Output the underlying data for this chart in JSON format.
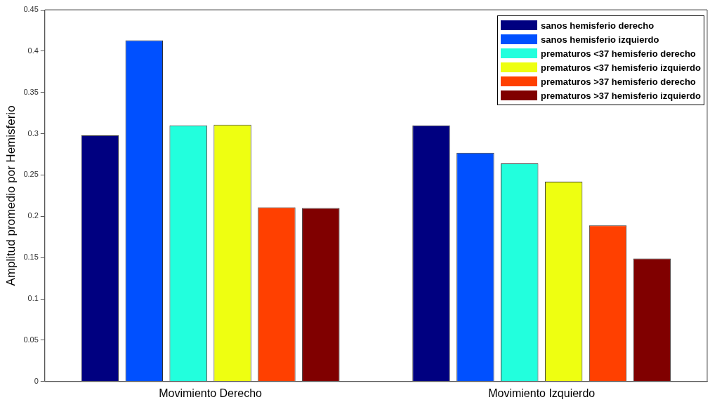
{
  "chart_data": {
    "type": "bar",
    "ylabel": "Amplitud promedio por Hemisferio",
    "categories": [
      "Movimiento Derecho",
      "Movimiento Izquierdo"
    ],
    "series": [
      {
        "name": "sanos hemisferio derecho",
        "color": "#000080",
        "values": [
          0.298,
          0.31
        ]
      },
      {
        "name": "sanos hemisferio izquierdo",
        "color": "#0050ff",
        "values": [
          0.413,
          0.277
        ]
      },
      {
        "name": "prematuros <37 hemisferio derecho",
        "color": "#22ffdd",
        "values": [
          0.31,
          0.264
        ]
      },
      {
        "name": "prematuros <37 hemisferio izquierdo",
        "color": "#eeff11",
        "values": [
          0.311,
          0.242
        ]
      },
      {
        "name": "prematuros >37 hemisferio derecho",
        "color": "#ff4000",
        "values": [
          0.211,
          0.189
        ]
      },
      {
        "name": "prematuros >37 hemisferio izquierdo",
        "color": "#800000",
        "values": [
          0.21,
          0.149
        ]
      }
    ],
    "ylim": [
      0,
      0.45
    ],
    "yticks": [
      0,
      0.05,
      0.1,
      0.15,
      0.2,
      0.25,
      0.3,
      0.35,
      0.4,
      0.45
    ],
    "grid": false,
    "legend": "top right"
  }
}
